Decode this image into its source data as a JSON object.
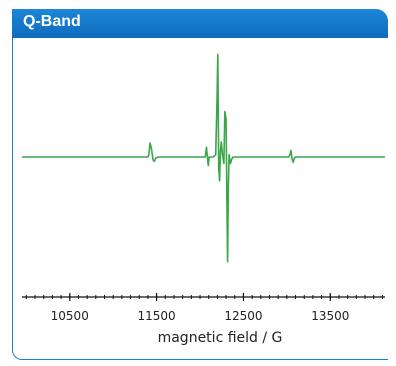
{
  "header": {
    "title": "Q-Band"
  },
  "colors": {
    "accent": "#1478c8",
    "trace": "#3aa64a"
  },
  "chart_data": {
    "type": "line",
    "title": "Q-Band",
    "xlabel": "magnetic field / G",
    "ylabel": "",
    "xlim": [
      9950,
      14130
    ],
    "ylim": [
      -100,
      100
    ],
    "xticks": [
      10500,
      11500,
      12500,
      13500
    ],
    "xtick_labels": [
      "10500",
      "11500",
      "12500",
      "13500"
    ],
    "grid": false,
    "series": [
      {
        "values_note": "",
        "x": [
          9950,
          11400,
          11410,
          11425,
          11440,
          11460,
          11475,
          11490,
          11520,
          12060,
          12075,
          12085,
          12095,
          12105,
          12150,
          12180,
          12195,
          12205,
          12215,
          12225,
          12235,
          12245,
          12260,
          12275,
          12285,
          12300,
          12310,
          12318,
          12325,
          12335,
          12350,
          12365,
          12380,
          12400,
          12430,
          12500,
          13020,
          13035,
          13048,
          13060,
          13072,
          13085,
          13100,
          14130
        ],
        "y": [
          0,
          0,
          2,
          13,
          8,
          -3,
          -4,
          -1,
          0,
          0,
          9,
          0,
          -8,
          0,
          0,
          2,
          52,
          95,
          -10,
          -22,
          5,
          14,
          1,
          -6,
          42,
          35,
          -40,
          -97,
          -30,
          2,
          -6,
          -2,
          0,
          0,
          0,
          0,
          0,
          2,
          6,
          -2,
          -5,
          -1,
          0,
          0
        ]
      }
    ]
  }
}
